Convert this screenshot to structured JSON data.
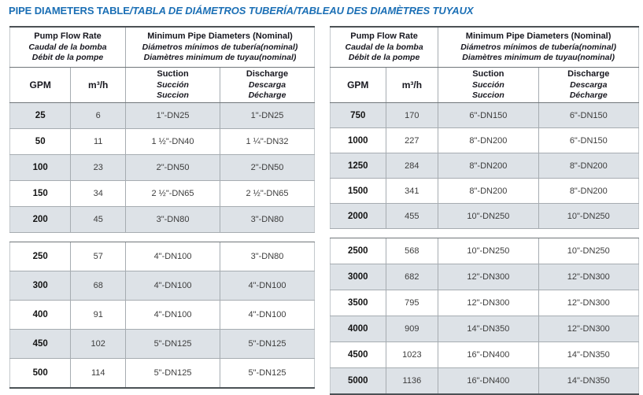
{
  "title": {
    "main": "PIPE DIAMETERS TABLE",
    "translations": "/TABLA DE DIÁMETROS TUBERÍA/TABLEAU DES DIAMÈTRES TUYAUX"
  },
  "colors": {
    "title_blue": "#1b6fb5",
    "row_alt_bg": "#dde2e7",
    "grid_line": "#a6acb1",
    "heavy_line": "#4b5155",
    "header_text": "#17171f",
    "data_text": "#3d3d3d"
  },
  "header": {
    "flow": [
      "Pump Flow Rate",
      "Caudal de la bomba",
      "Débit de la pompe"
    ],
    "diameters": [
      "Minimum Pipe Diameters (Nominal)",
      "Diámetros mínimos de tubería(nominal)",
      "Diamètres minimum de tuyau(nominal)"
    ],
    "gpm": "GPM",
    "m3h": "m³/h",
    "suction": [
      "Suction",
      "Succión",
      "Succion"
    ],
    "discharge": [
      "Discharge",
      "Descarga",
      "Décharge"
    ]
  },
  "left_table": {
    "block1": [
      [
        "25",
        "6",
        "1\"-DN25",
        "1\"-DN25"
      ],
      [
        "50",
        "11",
        "1 ½\"-DN40",
        "1 ¼\"-DN32"
      ],
      [
        "100",
        "23",
        "2\"-DN50",
        "2\"-DN50"
      ],
      [
        "150",
        "34",
        "2 ½\"-DN65",
        "2 ½\"-DN65"
      ],
      [
        "200",
        "45",
        "3\"-DN80",
        "3\"-DN80"
      ]
    ],
    "block2": [
      [
        "250",
        "57",
        "4\"-DN100",
        "3\"-DN80"
      ],
      [
        "300",
        "68",
        "4\"-DN100",
        "4\"-DN100"
      ],
      [
        "400",
        "91",
        "4\"-DN100",
        "4\"-DN100"
      ],
      [
        "450",
        "102",
        "5\"-DN125",
        "5\"-DN125"
      ],
      [
        "500",
        "114",
        "5\"-DN125",
        "5\"-DN125"
      ]
    ]
  },
  "right_table": {
    "block1": [
      [
        "750",
        "170",
        "6\"-DN150",
        "6\"-DN150"
      ],
      [
        "1000",
        "227",
        "8\"-DN200",
        "6\"-DN150"
      ],
      [
        "1250",
        "284",
        "8\"-DN200",
        "8\"-DN200"
      ],
      [
        "1500",
        "341",
        "8\"-DN200",
        "8\"-DN200"
      ],
      [
        "2000",
        "455",
        "10\"-DN250",
        "10\"-DN250"
      ]
    ],
    "block2": [
      [
        "2500",
        "568",
        "10\"-DN250",
        "10\"-DN250"
      ],
      [
        "3000",
        "682",
        "12\"-DN300",
        "12\"-DN300"
      ],
      [
        "3500",
        "795",
        "12\"-DN300",
        "12\"-DN300"
      ],
      [
        "4000",
        "909",
        "14\"-DN350",
        "12\"-DN300"
      ],
      [
        "4500",
        "1023",
        "16\"-DN400",
        "14\"-DN350"
      ],
      [
        "5000",
        "1136",
        "16\"-DN400",
        "14\"-DN350"
      ]
    ]
  }
}
